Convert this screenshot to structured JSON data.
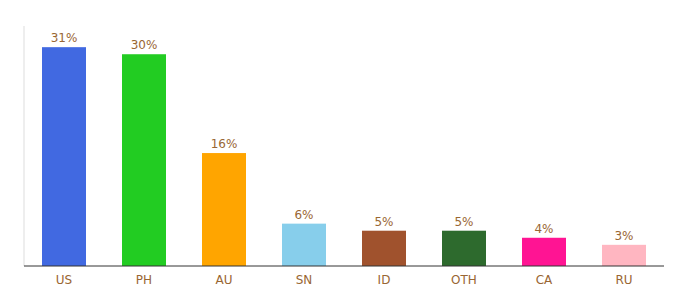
{
  "chart_data": {
    "type": "bar",
    "categories": [
      "US",
      "PH",
      "AU",
      "SN",
      "ID",
      "OTH",
      "CA",
      "RU"
    ],
    "values": [
      31,
      30,
      16,
      6,
      5,
      5,
      4,
      3
    ],
    "value_labels": [
      "31%",
      "30%",
      "16%",
      "6%",
      "5%",
      "5%",
      "4%",
      "3%"
    ],
    "colors": [
      "#4169E1",
      "#22CC22",
      "#FFA500",
      "#87CEEB",
      "#A0522D",
      "#2D6A2D",
      "#FF1493",
      "#FFB6C1"
    ],
    "ylim": [
      0,
      34
    ],
    "data_labels": true,
    "tick_labels": "x",
    "grid": false
  }
}
